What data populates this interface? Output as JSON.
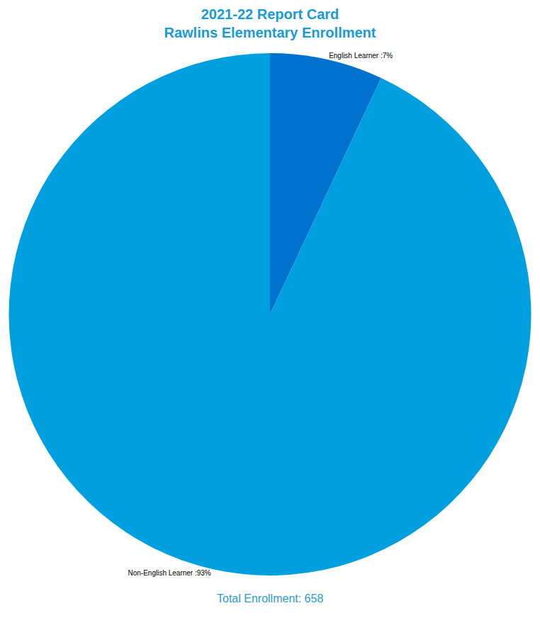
{
  "chart_data": {
    "type": "pie",
    "title": "2021-22 Report Card",
    "subtitle": "Rawlins Elementary Enrollment",
    "categories": [
      "English Learner",
      "Non-English Learner"
    ],
    "values": [
      7,
      93
    ],
    "value_labels": [
      "English Learner :7%",
      "Non-English Learner :93%"
    ],
    "colors": [
      "#0072ce",
      "#00a0e0"
    ],
    "data_labels": true,
    "annotations": [
      "Total Enrollment: 658"
    ]
  }
}
